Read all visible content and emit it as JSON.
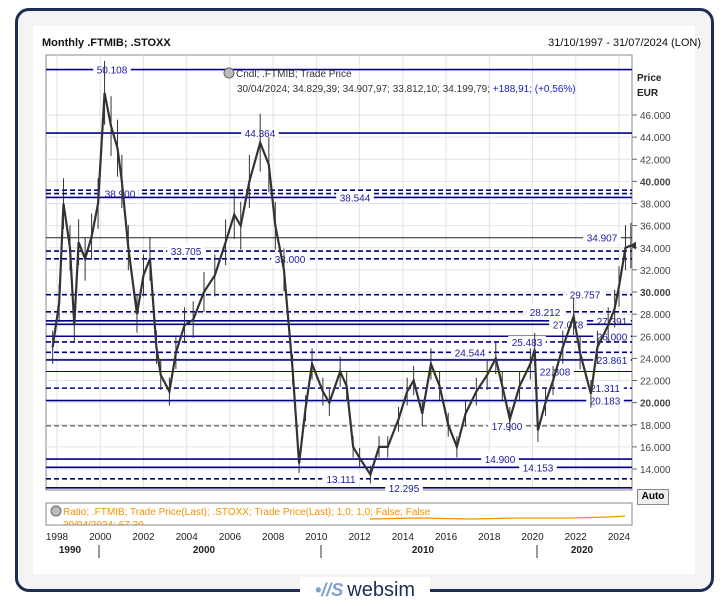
{
  "header": {
    "title": "Monthly .FTMIB; .STOXX",
    "date_range": "31/10/1997 - 31/07/2024 (LON)"
  },
  "legend": {
    "series": "Cndl; .FTMIB; Trade Price",
    "ohlc": "30/04/2024; 34.829,39; 34.907,97; 33.812,10; 34.199,79;",
    "change": "+188,91; (+0,56%)"
  },
  "indicator": {
    "label": "Ratio; .FTMIB; Trade Price(Last); .STOXX; Trade Price(Last);  1,0; 1,0; False; False",
    "value": "30/04/2024; 67,30",
    "color": "#f39200"
  },
  "auto_button": "Auto",
  "footer": {
    "logo": "websim"
  },
  "colors": {
    "level_line": "#00008b",
    "candles": "#333333",
    "frame": "#1d2d55"
  },
  "chart_data": {
    "type": "line",
    "ylabel": "Price\nEUR",
    "ylim": [
      12000,
      51000
    ],
    "xlim": [
      1997.6,
      2024.6
    ],
    "y_ticks": [
      "14.000",
      "16.000",
      "18.000",
      "20.000",
      "22.000",
      "24.000",
      "26.000",
      "28.000",
      "30.000",
      "32.000",
      "34.000",
      "36.000",
      "38.000",
      "40.000",
      "42.000",
      "44.000",
      "46.000"
    ],
    "y_tick_values": [
      14000,
      16000,
      18000,
      20000,
      22000,
      24000,
      26000,
      28000,
      30000,
      32000,
      34000,
      36000,
      38000,
      40000,
      42000,
      44000,
      46000
    ],
    "x_ticks": [
      "1998",
      "2000",
      "2002",
      "2004",
      "2006",
      "2008",
      "2010",
      "2012",
      "2014",
      "2016",
      "2018",
      "2020",
      "2022",
      "2024"
    ],
    "x_tick_values": [
      1998,
      2000,
      2002,
      2004,
      2006,
      2008,
      2010,
      2012,
      2014,
      2016,
      2018,
      2020,
      2022,
      2024
    ],
    "decades": [
      "1990",
      "2000",
      "2010",
      "2020"
    ],
    "grid": true,
    "series": [
      {
        "x": [
          1997.8,
          1998.1,
          1998.3,
          1998.6,
          1998.8,
          1999.0,
          1999.3,
          1999.6,
          1999.9,
          2000.2,
          2000.5,
          2000.8,
          2001.0,
          2001.3,
          2001.7,
          2002.0,
          2002.3,
          2002.6,
          2002.8,
          2003.2,
          2003.5,
          2003.9,
          2004.3,
          2004.8,
          2005.3,
          2005.8,
          2006.2,
          2006.5,
          2006.9,
          2007.4,
          2007.8,
          2008.1,
          2008.5,
          2008.9,
          2009.2,
          2009.5,
          2009.8,
          2010.3,
          2010.6,
          2011.1,
          2011.4,
          2011.7,
          2012.0,
          2012.5,
          2012.9,
          2013.3,
          2013.8,
          2014.2,
          2014.5,
          2014.9,
          2015.3,
          2015.7,
          2016.1,
          2016.5,
          2016.9,
          2017.4,
          2017.9,
          2018.3,
          2018.6,
          2018.95,
          2019.4,
          2019.9,
          2020.1,
          2020.25,
          2020.6,
          2020.95,
          2021.4,
          2021.9,
          2022.2,
          2022.7,
          2023.0,
          2023.5,
          2023.8,
          2024.0,
          2024.3,
          2024.55
        ],
        "y": [
          25000,
          29000,
          38000,
          34000,
          27000,
          34500,
          33000,
          35000,
          38000,
          48000,
          45000,
          43000,
          40000,
          34000,
          28000,
          31500,
          33000,
          25000,
          22500,
          21000,
          24500,
          27000,
          27500,
          30000,
          31500,
          34500,
          37000,
          36000,
          40000,
          43500,
          41500,
          36000,
          32000,
          23000,
          14500,
          19500,
          23500,
          21000,
          20000,
          22800,
          21500,
          16000,
          15000,
          13500,
          16000,
          16000,
          18500,
          21000,
          22000,
          19000,
          23500,
          21500,
          18000,
          16000,
          19000,
          21000,
          22500,
          24000,
          21500,
          18500,
          21500,
          23500,
          24800,
          17500,
          20000,
          22000,
          25000,
          27800,
          24500,
          20800,
          25000,
          27000,
          28500,
          30500,
          34000,
          34199
        ]
      }
    ],
    "levels": [
      {
        "value": 50108,
        "label": "50.108",
        "style": "solid"
      },
      {
        "value": 44364,
        "label": "44.364",
        "style": "solid"
      },
      {
        "value": 39200,
        "label": "",
        "style": "dashed"
      },
      {
        "value": 38900,
        "label": "38.900",
        "style": "dashed"
      },
      {
        "value": 38544,
        "label": "38.544",
        "style": "solid"
      },
      {
        "value": 34907,
        "label": "34.907",
        "style": "current"
      },
      {
        "value": 33705,
        "label": "33.705",
        "style": "dashed"
      },
      {
        "value": 33000,
        "label": "33.000",
        "style": "dashed"
      },
      {
        "value": 29757,
        "label": "29.757",
        "style": "dashed"
      },
      {
        "value": 28212,
        "label": "28.212",
        "style": "dashed"
      },
      {
        "value": 27391,
        "label": "27.391",
        "style": "solid"
      },
      {
        "value": 27078,
        "label": "27.078",
        "style": "solid"
      },
      {
        "value": 26000,
        "label": "26.000",
        "style": "solid"
      },
      {
        "value": 25483,
        "label": "25.483",
        "style": "dashed"
      },
      {
        "value": 24544,
        "label": "24.544",
        "style": "dashed"
      },
      {
        "value": 23861,
        "label": "23.861",
        "style": "solid"
      },
      {
        "value": 22808,
        "label": "22.808",
        "style": "thin"
      },
      {
        "value": 21311,
        "label": "21.311",
        "style": "dashed"
      },
      {
        "value": 20183,
        "label": "20.183",
        "style": "solid"
      },
      {
        "value": 17900,
        "label": "17.900",
        "style": "thindash"
      },
      {
        "value": 14900,
        "label": "14.900",
        "style": "solid"
      },
      {
        "value": 14153,
        "label": "14.153",
        "style": "solid"
      },
      {
        "value": 13111,
        "label": "13.111",
        "style": "dashed"
      },
      {
        "value": 12295,
        "label": "12.295",
        "style": "solid"
      }
    ]
  }
}
